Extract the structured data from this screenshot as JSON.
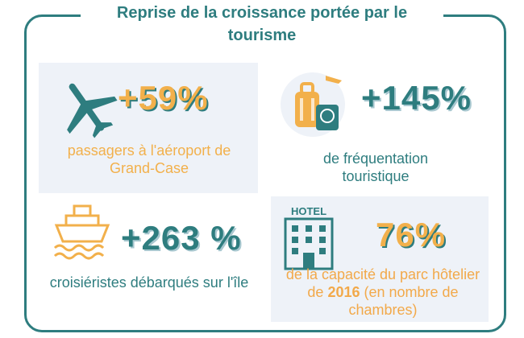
{
  "title": "Reprise de la croissance portée par le tourisme",
  "cards": [
    {
      "value": "+59%",
      "label": "passagers à l'aéroport de Grand-Case",
      "icon": "airplane-icon",
      "color": "#f2b04b"
    },
    {
      "value": "+145%",
      "label": "de fréquentation touristique",
      "icon": "luggage-passport-icon",
      "color": "#2e7d7f"
    },
    {
      "value": "+263 %",
      "label": "croisiéristes débarqués sur l'île",
      "icon": "cruise-ship-icon",
      "color": "#2e7d7f"
    },
    {
      "value": "76%",
      "label_before": "de la capacité du parc hôtelier de ",
      "label_bold": "2016",
      "label_after": " (en nombre de chambres)",
      "icon": "hotel-icon",
      "hotel_sign": "HOTEL",
      "color": "#f2b04b"
    }
  ],
  "colors": {
    "teal": "#2e7d7f",
    "orange": "#f2b04b",
    "panel": "#eef2f8"
  }
}
